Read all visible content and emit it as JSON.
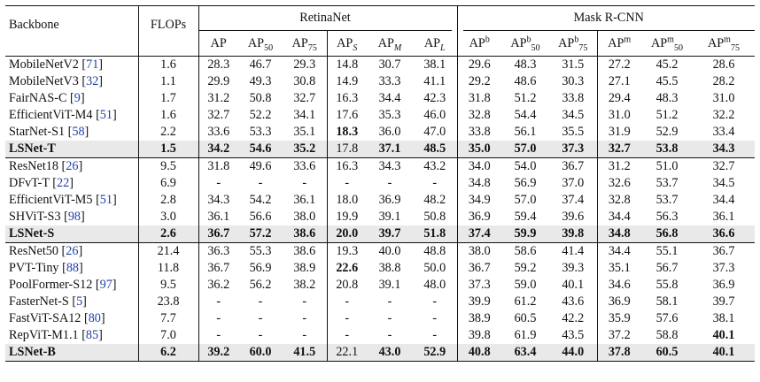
{
  "header": {
    "backbone": "Backbone",
    "flops": "FLOPs",
    "retinanet": "RetinaNet",
    "maskrcnn": "Mask R-CNN",
    "ret_cols": [
      {
        "base": "AP",
        "sub": "",
        "sup": ""
      },
      {
        "base": "AP",
        "sub": "50",
        "sup": ""
      },
      {
        "base": "AP",
        "sub": "75",
        "sup": ""
      },
      {
        "base": "AP",
        "sub": "S",
        "sup": ""
      },
      {
        "base": "AP",
        "sub": "M",
        "sup": ""
      },
      {
        "base": "AP",
        "sub": "L",
        "sup": ""
      }
    ],
    "mask_cols": [
      {
        "base": "AP",
        "sub": "",
        "sup": "b"
      },
      {
        "base": "AP",
        "sub": "50",
        "sup": "b"
      },
      {
        "base": "AP",
        "sub": "75",
        "sup": "b"
      },
      {
        "base": "AP",
        "sub": "",
        "sup": "m"
      },
      {
        "base": "AP",
        "sub": "50",
        "sup": "m"
      },
      {
        "base": "AP",
        "sub": "75",
        "sup": "m"
      }
    ]
  },
  "sections": [
    [
      {
        "name": "MobileNetV2",
        "cite": "71",
        "flops": "1.6",
        "vals": [
          "28.3",
          "46.7",
          "29.3",
          "14.8",
          "30.7",
          "38.1",
          "29.6",
          "48.3",
          "31.5",
          "27.2",
          "45.2",
          "28.6"
        ],
        "bold": []
      },
      {
        "name": "MobileNetV3",
        "cite": "32",
        "flops": "1.1",
        "vals": [
          "29.9",
          "49.3",
          "30.8",
          "14.9",
          "33.3",
          "41.1",
          "29.2",
          "48.6",
          "30.3",
          "27.1",
          "45.5",
          "28.2"
        ],
        "bold": []
      },
      {
        "name": "FairNAS-C",
        "cite": "9",
        "flops": "1.7",
        "vals": [
          "31.2",
          "50.8",
          "32.7",
          "16.3",
          "34.4",
          "42.3",
          "31.8",
          "51.2",
          "33.8",
          "29.4",
          "48.3",
          "31.0"
        ],
        "bold": []
      },
      {
        "name": "EfficientViT-M4",
        "cite": "51",
        "flops": "1.6",
        "vals": [
          "32.7",
          "52.2",
          "34.1",
          "17.6",
          "35.3",
          "46.0",
          "32.8",
          "54.4",
          "34.5",
          "31.0",
          "51.2",
          "32.2"
        ],
        "bold": []
      },
      {
        "name": "StarNet-S1",
        "cite": "58",
        "flops": "2.2",
        "vals": [
          "33.6",
          "53.3",
          "35.1",
          "18.3",
          "36.0",
          "47.0",
          "33.8",
          "56.1",
          "35.5",
          "31.9",
          "52.9",
          "33.4"
        ],
        "bold": [
          3
        ]
      },
      {
        "name": "LSNet-T",
        "cite": "",
        "flops": "1.5",
        "vals": [
          "34.2",
          "54.6",
          "35.2",
          "17.8",
          "37.1",
          "48.5",
          "35.0",
          "57.0",
          "37.3",
          "32.7",
          "53.8",
          "34.3"
        ],
        "bold": [
          0,
          1,
          2,
          4,
          5,
          6,
          7,
          8,
          9,
          10,
          11
        ],
        "hl": true
      }
    ],
    [
      {
        "name": "ResNet18",
        "cite": "26",
        "flops": "9.5",
        "vals": [
          "31.8",
          "49.6",
          "33.6",
          "16.3",
          "34.3",
          "43.2",
          "34.0",
          "54.0",
          "36.7",
          "31.2",
          "51.0",
          "32.7"
        ],
        "bold": []
      },
      {
        "name": "DFvT-T",
        "cite": "22",
        "flops": "6.9",
        "vals": [
          "-",
          "-",
          "-",
          "-",
          "-",
          "-",
          "34.8",
          "56.9",
          "37.0",
          "32.6",
          "53.7",
          "34.5"
        ],
        "bold": []
      },
      {
        "name": "EfficientViT-M5",
        "cite": "51",
        "flops": "2.8",
        "vals": [
          "34.3",
          "54.2",
          "36.1",
          "18.0",
          "36.9",
          "48.2",
          "34.9",
          "57.0",
          "37.4",
          "32.8",
          "53.7",
          "34.4"
        ],
        "bold": []
      },
      {
        "name": "SHViT-S3",
        "cite": "98",
        "flops": "3.0",
        "vals": [
          "36.1",
          "56.6",
          "38.0",
          "19.9",
          "39.1",
          "50.8",
          "36.9",
          "59.4",
          "39.6",
          "34.4",
          "56.3",
          "36.1"
        ],
        "bold": []
      },
      {
        "name": "LSNet-S",
        "cite": "",
        "flops": "2.6",
        "vals": [
          "36.7",
          "57.2",
          "38.6",
          "20.0",
          "39.7",
          "51.8",
          "37.4",
          "59.9",
          "39.8",
          "34.8",
          "56.8",
          "36.6"
        ],
        "bold": [
          0,
          1,
          2,
          3,
          4,
          5,
          6,
          7,
          8,
          9,
          10,
          11
        ],
        "hl": true
      }
    ],
    [
      {
        "name": "ResNet50",
        "cite": "26",
        "flops": "21.4",
        "vals": [
          "36.3",
          "55.3",
          "38.6",
          "19.3",
          "40.0",
          "48.8",
          "38.0",
          "58.6",
          "41.4",
          "34.4",
          "55.1",
          "36.7"
        ],
        "bold": []
      },
      {
        "name": "PVT-Tiny",
        "cite": "88",
        "flops": "11.8",
        "vals": [
          "36.7",
          "56.9",
          "38.9",
          "22.6",
          "38.8",
          "50.0",
          "36.7",
          "59.2",
          "39.3",
          "35.1",
          "56.7",
          "37.3"
        ],
        "bold": [
          3
        ]
      },
      {
        "name": "PoolFormer-S12",
        "cite": "97",
        "flops": "9.5",
        "vals": [
          "36.2",
          "56.2",
          "38.2",
          "20.8",
          "39.1",
          "48.0",
          "37.3",
          "59.0",
          "40.1",
          "34.6",
          "55.8",
          "36.9"
        ],
        "bold": []
      },
      {
        "name": "FasterNet-S",
        "cite": "5",
        "flops": "23.8",
        "vals": [
          "-",
          "-",
          "-",
          "-",
          "-",
          "-",
          "39.9",
          "61.2",
          "43.6",
          "36.9",
          "58.1",
          "39.7"
        ],
        "bold": []
      },
      {
        "name": "FastViT-SA12",
        "cite": "80",
        "flops": "7.7",
        "vals": [
          "-",
          "-",
          "-",
          "-",
          "-",
          "-",
          "38.9",
          "60.5",
          "42.2",
          "35.9",
          "57.6",
          "38.1"
        ],
        "bold": []
      },
      {
        "name": "RepViT-M1.1",
        "cite": "85",
        "flops": "7.0",
        "vals": [
          "-",
          "-",
          "-",
          "-",
          "-",
          "-",
          "39.8",
          "61.9",
          "43.5",
          "37.2",
          "58.8",
          "40.1"
        ],
        "bold": [
          11
        ]
      },
      {
        "name": "LSNet-B",
        "cite": "",
        "flops": "6.2",
        "vals": [
          "39.2",
          "60.0",
          "41.5",
          "22.1",
          "43.0",
          "52.9",
          "40.8",
          "63.4",
          "44.0",
          "37.8",
          "60.5",
          "40.1"
        ],
        "bold": [
          0,
          1,
          2,
          4,
          5,
          6,
          7,
          8,
          9,
          10,
          11
        ],
        "hl": true
      }
    ]
  ]
}
